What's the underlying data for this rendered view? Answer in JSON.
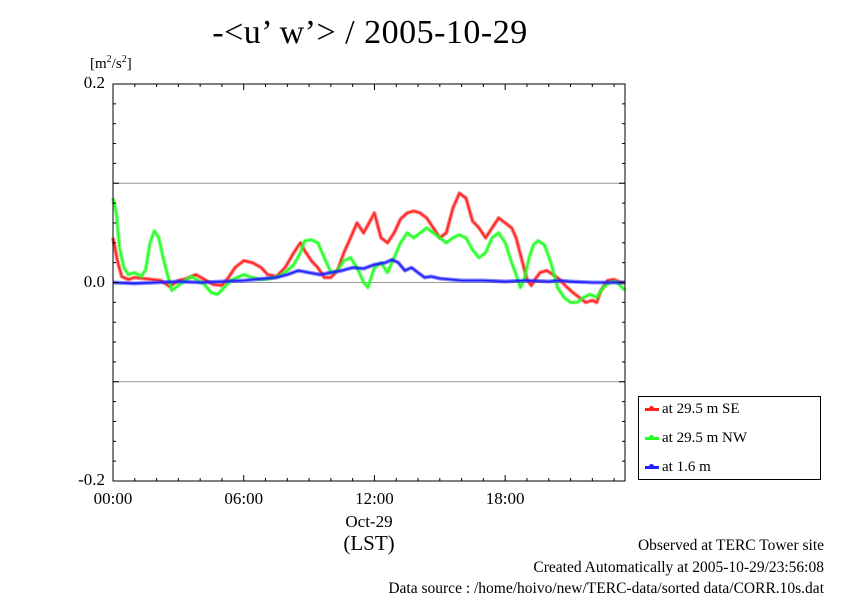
{
  "title": "-<u’ w’> / 2005-10-29",
  "unit": {
    "base": "[m",
    "exp1": "2",
    "mid": "/s",
    "exp2": "2",
    "end": "]"
  },
  "x_axis": {
    "date_label": "Oct-29",
    "tz_label": "(LST)"
  },
  "footer": {
    "line1": "Observed at TERC Tower site",
    "line2": "Created Automatically at 2005-10-29/23:56:08",
    "line3": "Data source : /home/hoivo/new/TERC-data/sorted  data/CORR.10s.dat"
  },
  "chart_data": {
    "type": "line",
    "title": "-<u’ w’> / 2005-10-29",
    "ylabel": "[m2/s2]",
    "xlabel": "(LST)",
    "xlim": [
      0,
      23.5
    ],
    "ylim": [
      -0.2,
      0.2
    ],
    "grid": "horizontal",
    "legend_position": "bottom-right",
    "yticks": [
      {
        "value": -0.2,
        "label": "-0.2"
      },
      {
        "value": 0.0,
        "label": "0.0"
      },
      {
        "value": 0.2,
        "label": "0.2"
      }
    ],
    "xticks": [
      {
        "value": 0,
        "label": "00:00"
      },
      {
        "value": 6,
        "label": "06:00"
      },
      {
        "value": 12,
        "label": "12:00"
      },
      {
        "value": 18,
        "label": "18:00"
      }
    ],
    "series": [
      {
        "name": "at 29.5 m SE",
        "color": "#ff2020",
        "points": [
          [
            0,
            0.045
          ],
          [
            0.2,
            0.022
          ],
          [
            0.4,
            0.006
          ],
          [
            0.7,
            0.003
          ],
          [
            1.0,
            0.005
          ],
          [
            1.4,
            0.004
          ],
          [
            1.8,
            0.003
          ],
          [
            2.2,
            0.002
          ],
          [
            2.6,
            -0.004
          ],
          [
            3.0,
            0.002
          ],
          [
            3.4,
            0.004
          ],
          [
            3.8,
            0.008
          ],
          [
            4.2,
            0.003
          ],
          [
            4.6,
            -0.002
          ],
          [
            5.0,
            -0.003
          ],
          [
            5.3,
            0.005
          ],
          [
            5.6,
            0.015
          ],
          [
            6.0,
            0.022
          ],
          [
            6.4,
            0.02
          ],
          [
            6.8,
            0.015
          ],
          [
            7.1,
            0.008
          ],
          [
            7.5,
            0.006
          ],
          [
            7.9,
            0.015
          ],
          [
            8.3,
            0.03
          ],
          [
            8.6,
            0.04
          ],
          [
            8.8,
            0.032
          ],
          [
            9.1,
            0.022
          ],
          [
            9.4,
            0.015
          ],
          [
            9.7,
            0.005
          ],
          [
            10.0,
            0.005
          ],
          [
            10.3,
            0.012
          ],
          [
            10.6,
            0.03
          ],
          [
            10.9,
            0.045
          ],
          [
            11.2,
            0.06
          ],
          [
            11.5,
            0.05
          ],
          [
            11.8,
            0.062
          ],
          [
            12.0,
            0.07
          ],
          [
            12.3,
            0.045
          ],
          [
            12.6,
            0.04
          ],
          [
            12.9,
            0.05
          ],
          [
            13.2,
            0.064
          ],
          [
            13.5,
            0.07
          ],
          [
            13.8,
            0.072
          ],
          [
            14.1,
            0.07
          ],
          [
            14.4,
            0.065
          ],
          [
            14.7,
            0.055
          ],
          [
            15.0,
            0.045
          ],
          [
            15.3,
            0.05
          ],
          [
            15.6,
            0.075
          ],
          [
            15.9,
            0.09
          ],
          [
            16.2,
            0.085
          ],
          [
            16.5,
            0.062
          ],
          [
            16.8,
            0.055
          ],
          [
            17.1,
            0.045
          ],
          [
            17.4,
            0.055
          ],
          [
            17.7,
            0.065
          ],
          [
            18.0,
            0.06
          ],
          [
            18.3,
            0.055
          ],
          [
            18.5,
            0.045
          ],
          [
            18.8,
            0.02
          ],
          [
            19.0,
            0.003
          ],
          [
            19.2,
            -0.003
          ],
          [
            19.4,
            0.004
          ],
          [
            19.6,
            0.01
          ],
          [
            19.9,
            0.012
          ],
          [
            20.2,
            0.008
          ],
          [
            20.5,
            0.003
          ],
          [
            20.8,
            -0.004
          ],
          [
            21.1,
            -0.01
          ],
          [
            21.4,
            -0.015
          ],
          [
            21.7,
            -0.02
          ],
          [
            22.0,
            -0.018
          ],
          [
            22.2,
            -0.02
          ],
          [
            22.4,
            -0.008
          ],
          [
            22.7,
            0.002
          ],
          [
            23.0,
            0.003
          ],
          [
            23.3,
            0.0
          ],
          [
            23.5,
            0.0
          ]
        ]
      },
      {
        "name": "at 29.5 m NW",
        "color": "#20ff20",
        "points": [
          [
            0,
            0.085
          ],
          [
            0.15,
            0.07
          ],
          [
            0.3,
            0.035
          ],
          [
            0.5,
            0.015
          ],
          [
            0.7,
            0.008
          ],
          [
            1.0,
            0.01
          ],
          [
            1.3,
            0.006
          ],
          [
            1.5,
            0.013
          ],
          [
            1.7,
            0.04
          ],
          [
            1.9,
            0.052
          ],
          [
            2.1,
            0.045
          ],
          [
            2.3,
            0.025
          ],
          [
            2.5,
            0.008
          ],
          [
            2.7,
            -0.008
          ],
          [
            3.0,
            -0.003
          ],
          [
            3.3,
            0.002
          ],
          [
            3.6,
            0.006
          ],
          [
            3.9,
            0.002
          ],
          [
            4.2,
            -0.002
          ],
          [
            4.5,
            -0.01
          ],
          [
            4.8,
            -0.012
          ],
          [
            5.1,
            -0.005
          ],
          [
            5.4,
            0.002
          ],
          [
            5.7,
            0.005
          ],
          [
            6.0,
            0.008
          ],
          [
            6.4,
            0.005
          ],
          [
            6.8,
            0.003
          ],
          [
            7.2,
            0.004
          ],
          [
            7.6,
            0.006
          ],
          [
            8.0,
            0.012
          ],
          [
            8.3,
            0.018
          ],
          [
            8.6,
            0.03
          ],
          [
            8.8,
            0.042
          ],
          [
            9.1,
            0.043
          ],
          [
            9.4,
            0.04
          ],
          [
            9.7,
            0.025
          ],
          [
            10.0,
            0.01
          ],
          [
            10.3,
            0.012
          ],
          [
            10.6,
            0.022
          ],
          [
            10.9,
            0.025
          ],
          [
            11.2,
            0.015
          ],
          [
            11.5,
            0.0
          ],
          [
            11.7,
            -0.005
          ],
          [
            12.0,
            0.015
          ],
          [
            12.3,
            0.02
          ],
          [
            12.6,
            0.01
          ],
          [
            12.9,
            0.025
          ],
          [
            13.2,
            0.04
          ],
          [
            13.5,
            0.05
          ],
          [
            13.8,
            0.045
          ],
          [
            14.1,
            0.05
          ],
          [
            14.4,
            0.055
          ],
          [
            14.7,
            0.05
          ],
          [
            15.0,
            0.045
          ],
          [
            15.3,
            0.04
          ],
          [
            15.6,
            0.045
          ],
          [
            15.9,
            0.048
          ],
          [
            16.2,
            0.045
          ],
          [
            16.5,
            0.033
          ],
          [
            16.8,
            0.025
          ],
          [
            17.1,
            0.03
          ],
          [
            17.4,
            0.045
          ],
          [
            17.7,
            0.05
          ],
          [
            18.0,
            0.04
          ],
          [
            18.3,
            0.02
          ],
          [
            18.5,
            0.008
          ],
          [
            18.7,
            -0.005
          ],
          [
            18.9,
            0.005
          ],
          [
            19.1,
            0.025
          ],
          [
            19.3,
            0.038
          ],
          [
            19.5,
            0.042
          ],
          [
            19.8,
            0.038
          ],
          [
            20.1,
            0.02
          ],
          [
            20.4,
            -0.005
          ],
          [
            20.7,
            -0.015
          ],
          [
            21.0,
            -0.02
          ],
          [
            21.3,
            -0.02
          ],
          [
            21.6,
            -0.015
          ],
          [
            21.9,
            -0.012
          ],
          [
            22.2,
            -0.015
          ],
          [
            22.5,
            -0.005
          ],
          [
            22.8,
            0.0
          ],
          [
            23.1,
            0.001
          ],
          [
            23.5,
            -0.008
          ]
        ]
      },
      {
        "name": "at 1.6 m",
        "color": "#2020ff",
        "points": [
          [
            0,
            0.0
          ],
          [
            1.0,
            -0.001
          ],
          [
            2.0,
            0.0
          ],
          [
            3.0,
            0.001
          ],
          [
            4.0,
            0.0
          ],
          [
            5.0,
            0.001
          ],
          [
            6.0,
            0.002
          ],
          [
            7.0,
            0.004
          ],
          [
            7.5,
            0.005
          ],
          [
            8.0,
            0.008
          ],
          [
            8.5,
            0.012
          ],
          [
            9.0,
            0.01
          ],
          [
            9.5,
            0.008
          ],
          [
            10.0,
            0.01
          ],
          [
            10.5,
            0.012
          ],
          [
            11.0,
            0.015
          ],
          [
            11.5,
            0.014
          ],
          [
            12.0,
            0.018
          ],
          [
            12.5,
            0.02
          ],
          [
            12.8,
            0.023
          ],
          [
            13.1,
            0.02
          ],
          [
            13.4,
            0.012
          ],
          [
            13.7,
            0.015
          ],
          [
            14.0,
            0.01
          ],
          [
            14.3,
            0.005
          ],
          [
            14.6,
            0.006
          ],
          [
            15.0,
            0.004
          ],
          [
            15.5,
            0.003
          ],
          [
            16.0,
            0.002
          ],
          [
            17.0,
            0.002
          ],
          [
            18.0,
            0.001
          ],
          [
            19.0,
            0.002
          ],
          [
            20.0,
            0.001
          ],
          [
            20.5,
            0.002
          ],
          [
            21.0,
            0.001
          ],
          [
            22.0,
            0.0
          ],
          [
            23.0,
            0.0
          ],
          [
            23.5,
            0.0
          ]
        ]
      }
    ]
  }
}
